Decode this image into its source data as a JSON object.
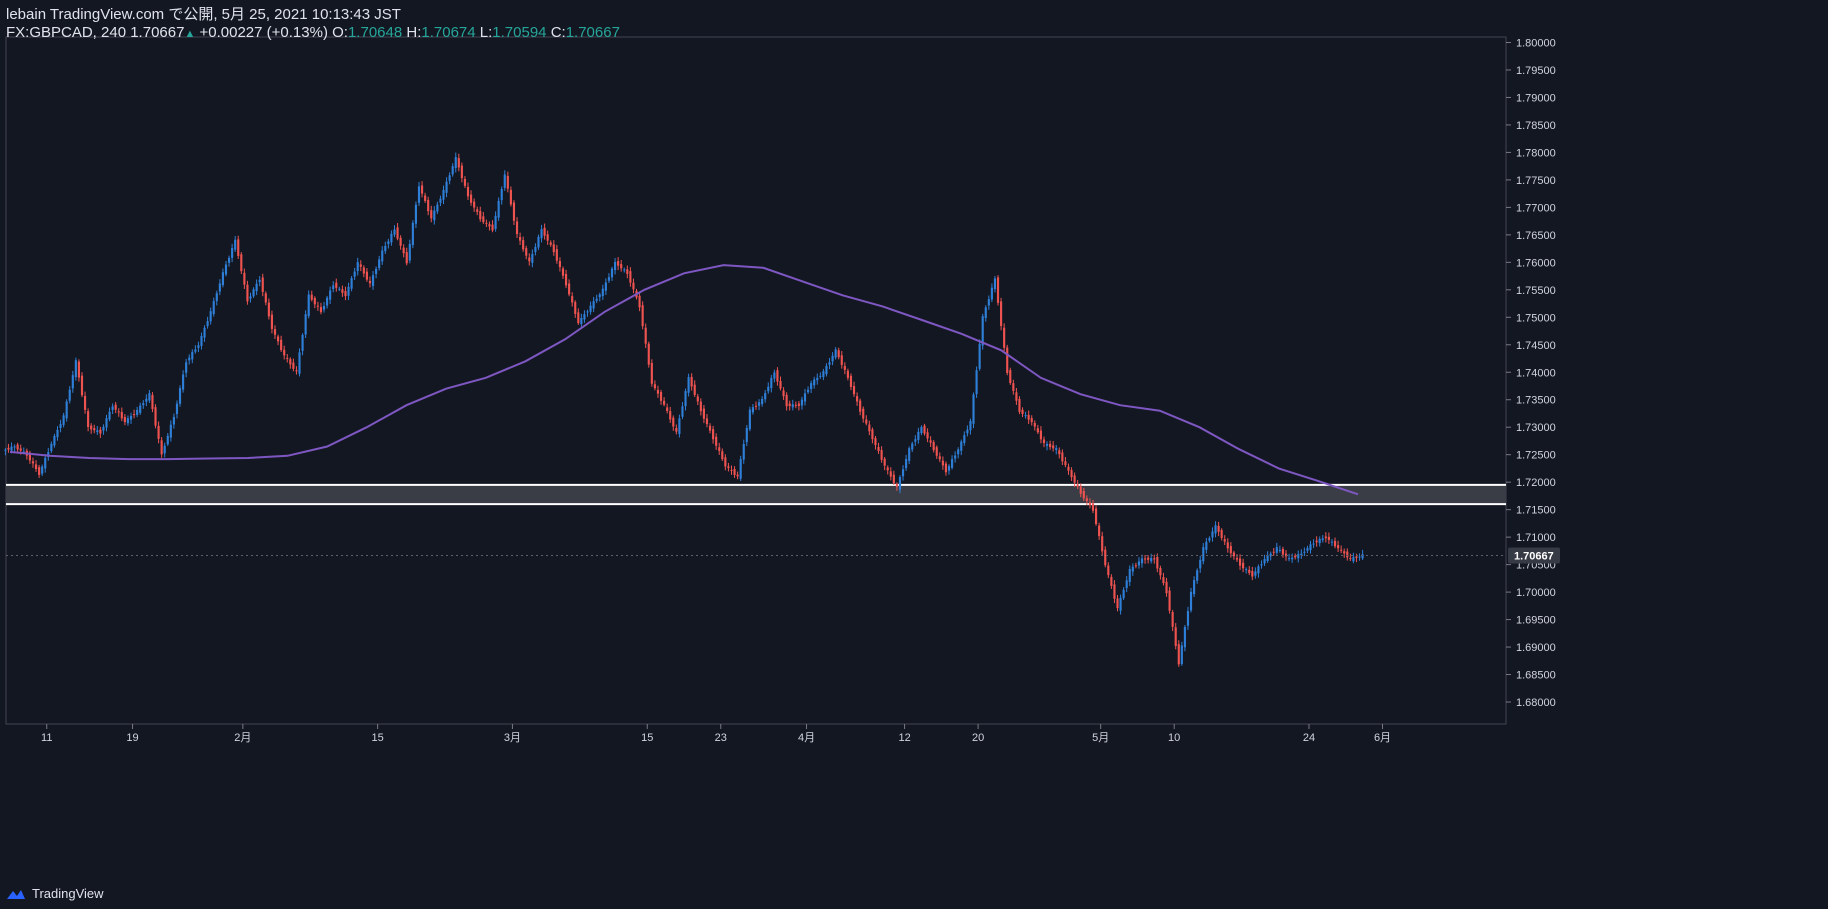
{
  "header": {
    "publish": "lebain TradingView.com で公開, 5月 25, 2021 10:13:43 JST",
    "symbol": "FX:GBPCAD, 240",
    "last": "1.70667",
    "change": "+0.00227 (+0.13%)",
    "o_label": "O:",
    "o_value": "1.70648",
    "h_label": "H:",
    "h_value": "1.70674",
    "l_label": "L:",
    "l_value": "1.70594",
    "c_label": "C:",
    "c_value": "1.70667"
  },
  "footer": {
    "brand": "TradingView"
  },
  "colors": {
    "background": "#131722",
    "up": "#2e7fd8",
    "down": "#ef5350",
    "ma": "#7e57c2",
    "zone": "#3a3d45",
    "zone_border": "#ffffff",
    "text": "#d1d4dc",
    "price_label_bg": "#363a45"
  },
  "chart_data": {
    "type": "candlestick",
    "symbol": "FX:GBPCAD",
    "timeframe": "240",
    "ylim": [
      1.676,
      1.801
    ],
    "y_ticks": [
      "1.68000",
      "1.68500",
      "1.69000",
      "1.69500",
      "1.70000",
      "1.70500",
      "1.71000",
      "1.71500",
      "1.72000",
      "1.72500",
      "1.73000",
      "1.73500",
      "1.74000",
      "1.74500",
      "1.75000",
      "1.75500",
      "1.76000",
      "1.76500",
      "1.77000",
      "1.77500",
      "1.78000",
      "1.78500",
      "1.79000",
      "1.79500",
      "1.80000"
    ],
    "x_ticks": [
      {
        "label": "11",
        "idx": 3
      },
      {
        "label": "19",
        "idx": 10
      },
      {
        "label": "2月",
        "idx": 19
      },
      {
        "label": "15",
        "idx": 30
      },
      {
        "label": "3月",
        "idx": 41
      },
      {
        "label": "15",
        "idx": 52
      },
      {
        "label": "23",
        "idx": 58
      },
      {
        "label": "4月",
        "idx": 65
      },
      {
        "label": "12",
        "idx": 73
      },
      {
        "label": "20",
        "idx": 79
      },
      {
        "label": "5月",
        "idx": 89
      },
      {
        "label": "10",
        "idx": 95
      },
      {
        "label": "24",
        "idx": 106
      },
      {
        "label": "6月",
        "idx": 112
      }
    ],
    "current_price": "1.70667",
    "closes": [
      1.7265,
      1.725,
      1.7215,
      1.727,
      1.732,
      1.742,
      1.73,
      1.729,
      1.734,
      1.731,
      1.733,
      1.736,
      1.725,
      1.732,
      1.742,
      1.745,
      1.751,
      1.758,
      1.764,
      1.753,
      1.757,
      1.748,
      1.743,
      1.74,
      1.754,
      1.751,
      1.756,
      1.754,
      1.76,
      1.756,
      1.762,
      1.766,
      1.76,
      1.774,
      1.768,
      1.773,
      1.779,
      1.772,
      1.768,
      1.766,
      1.776,
      1.765,
      1.76,
      1.766,
      1.762,
      1.756,
      1.749,
      1.752,
      1.755,
      1.76,
      1.758,
      1.752,
      1.738,
      1.734,
      1.729,
      1.739,
      1.733,
      1.728,
      1.723,
      1.721,
      1.733,
      1.735,
      1.74,
      1.734,
      1.734,
      1.738,
      1.74,
      1.744,
      1.739,
      1.733,
      1.728,
      1.723,
      1.719,
      1.726,
      1.73,
      1.726,
      1.722,
      1.726,
      1.731,
      1.75,
      1.757,
      1.74,
      1.733,
      1.731,
      1.727,
      1.726,
      1.722,
      1.718,
      1.715,
      1.705,
      1.697,
      1.704,
      1.706,
      1.706,
      1.7,
      1.687,
      1.7,
      1.708,
      1.712,
      1.708,
      1.705,
      1.703,
      1.706,
      1.708,
      1.706,
      1.707,
      1.709,
      1.71,
      1.708,
      1.706,
      1.7067
    ],
    "ma": {
      "name": "",
      "values": [
        1.7255,
        1.7248,
        1.7244,
        1.7242,
        1.7242,
        1.7243,
        1.7244,
        1.7248,
        1.7265,
        1.73,
        1.734,
        1.737,
        1.739,
        1.742,
        1.746,
        1.751,
        1.755,
        1.758,
        1.7595,
        1.759,
        1.7565,
        1.754,
        1.752,
        1.7495,
        1.747,
        1.744,
        1.739,
        1.736,
        1.734,
        1.733,
        1.73,
        1.726,
        1.7225,
        1.7202,
        1.7178
      ]
    },
    "ma_start_idx": 0,
    "zone": {
      "top": 1.7195,
      "bottom": 1.716
    }
  }
}
